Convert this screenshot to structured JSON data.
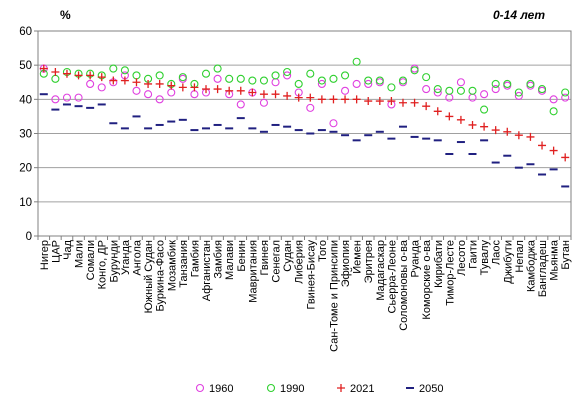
{
  "chart_data": {
    "type": "scatter",
    "title": "0-14 лет",
    "ylabel": "%",
    "ylim": [
      0,
      60
    ],
    "yticks": [
      0,
      10,
      20,
      30,
      40,
      50,
      60
    ],
    "grid": true,
    "legend_position": "bottom",
    "categories": [
      "Нигер",
      "ЦАР",
      "Чад",
      "Мали",
      "Сомали",
      "Конго, ДР",
      "Бурунди",
      "Уганда",
      "Ангола",
      "Южный Судан",
      "Буркина-Фасо",
      "Мозамбик",
      "Танзания",
      "Гамбия",
      "Афганистан",
      "Замбия",
      "Малави",
      "Бенин",
      "Мавритания",
      "Гвинея",
      "Сенегал",
      "Судан",
      "Либерия",
      "Гвинея-Бисау",
      "Того",
      "Сан-Томе и Принсипи",
      "Эфиопия",
      "Йемен",
      "Эритрея",
      "Мадагаскар",
      "Сьерра-Леоне",
      "Соломоновы о-ва",
      "Руанда",
      "Коморские о-ва",
      "Кирибати",
      "Тимор-Лесте",
      "Лесото",
      "Гаити",
      "Тувалу",
      "Лаос",
      "Джибути",
      "Непал",
      "Камбоджа",
      "Бангладеш",
      "Мьянма",
      "Бутан"
    ],
    "series": [
      {
        "name": "1960",
        "marker": "circle",
        "color": "#e040e0",
        "values": [
          49,
          40,
          40.5,
          40.5,
          44.5,
          43.5,
          45,
          47,
          42.5,
          41.5,
          40,
          42,
          46,
          41.5,
          42,
          46,
          41.5,
          38.5,
          42,
          39,
          45,
          47,
          42,
          37.5,
          44.5,
          33,
          42.5,
          44.5,
          44.5,
          45,
          38.5,
          45,
          49,
          43,
          42,
          40.5,
          45,
          40.5,
          41.5,
          43,
          44,
          41,
          44,
          42.5,
          40,
          40.5
        ]
      },
      {
        "name": "1990",
        "marker": "circle",
        "color": "#30d030",
        "values": [
          47.5,
          46,
          48,
          47.5,
          47.5,
          47,
          49,
          48.5,
          47,
          46,
          47,
          44.5,
          46.5,
          44.5,
          47.5,
          49,
          46,
          46,
          45.5,
          45.5,
          47,
          48,
          44.5,
          47.5,
          45.5,
          46,
          47,
          51,
          45.5,
          45.5,
          43.5,
          45.5,
          48.5,
          46.5,
          43,
          42.5,
          42.5,
          42.5,
          37,
          44.5,
          44.5,
          42,
          44.5,
          43,
          36.5,
          42
        ]
      },
      {
        "name": "2021",
        "marker": "plus",
        "color": "#e02020",
        "values": [
          49,
          48,
          47.5,
          47,
          47,
          46.5,
          45.5,
          45.5,
          45,
          44.5,
          44.5,
          44,
          43.5,
          43.5,
          43,
          43,
          42.5,
          42.5,
          42,
          41.5,
          41.5,
          41,
          40.5,
          40.5,
          40,
          40,
          40,
          40,
          39.5,
          39.5,
          39.5,
          39,
          39,
          38,
          36.5,
          35,
          34,
          32.5,
          32,
          31,
          30.5,
          29.5,
          29,
          26.5,
          25,
          23
        ]
      },
      {
        "name": "2050",
        "marker": "dash",
        "color": "#202080",
        "values": [
          41.5,
          37,
          38.5,
          38,
          37.5,
          38.5,
          33,
          31.5,
          35,
          31.5,
          32.5,
          33.5,
          34,
          31,
          31.5,
          32.5,
          31.5,
          34.5,
          31.5,
          30.5,
          32.5,
          32,
          31,
          30,
          31,
          30.5,
          29.5,
          28,
          29.5,
          30.5,
          28.5,
          32,
          29,
          28.5,
          28,
          24,
          27.5,
          24,
          28,
          21.5,
          23.5,
          20,
          21,
          18,
          19.5,
          14.5
        ]
      }
    ]
  }
}
